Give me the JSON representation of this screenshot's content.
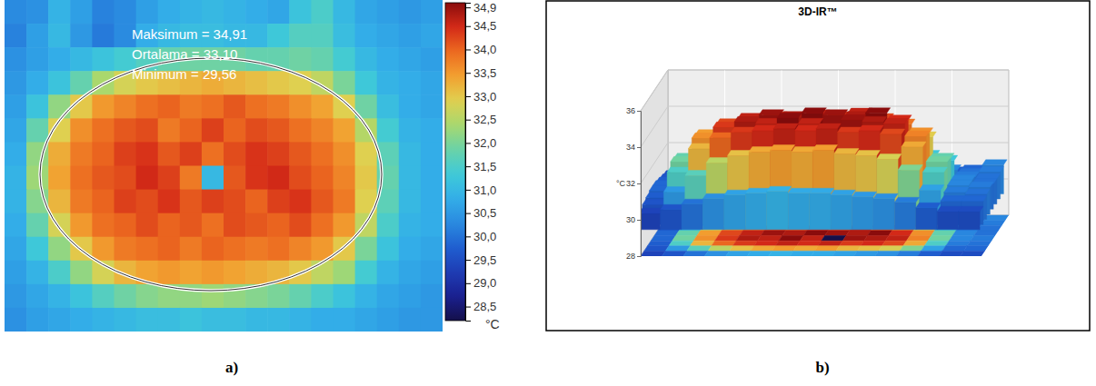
{
  "chart_data": [
    {
      "type": "heatmap",
      "label": "a)",
      "tick_labels": false,
      "annotations": [
        "Maksimum = 34,91",
        "Ortalama = 33,10",
        "Minimum = 29,56"
      ],
      "cells": [
        [
          30.3,
          30.4,
          30.9,
          30.6,
          30.2,
          30.3,
          30.6,
          30.8,
          30.9,
          31.0,
          30.9,
          30.8,
          30.7,
          31.2,
          31.5,
          31.0,
          30.7,
          30.6,
          30.5,
          30.6
        ],
        [
          30.2,
          30.6,
          31.0,
          30.5,
          30.1,
          30.3,
          30.8,
          31.0,
          31.1,
          31.1,
          31.0,
          31.0,
          31.3,
          31.6,
          31.6,
          31.1,
          30.8,
          30.7,
          30.6,
          30.7
        ],
        [
          30.4,
          30.6,
          30.8,
          31.0,
          31.2,
          31.4,
          31.6,
          31.8,
          31.9,
          31.9,
          31.9,
          31.8,
          31.8,
          31.9,
          31.8,
          31.4,
          31.0,
          30.8,
          30.7,
          30.6
        ],
        [
          30.5,
          30.8,
          31.2,
          31.8,
          32.4,
          32.8,
          33.0,
          33.1,
          33.2,
          33.3,
          33.2,
          33.1,
          33.0,
          32.9,
          32.6,
          32.0,
          31.3,
          30.9,
          30.8,
          30.7
        ],
        [
          30.6,
          31.2,
          32.2,
          33.0,
          33.5,
          33.7,
          33.9,
          34.0,
          33.8,
          33.9,
          34.1,
          33.9,
          33.8,
          33.6,
          33.4,
          32.9,
          31.9,
          31.1,
          30.8,
          30.7
        ],
        [
          30.7,
          31.8,
          32.9,
          33.6,
          33.9,
          34.1,
          34.2,
          33.8,
          34.0,
          34.3,
          34.0,
          34.2,
          34.1,
          33.9,
          33.7,
          33.4,
          32.5,
          31.4,
          30.9,
          30.8
        ],
        [
          30.8,
          32.2,
          33.3,
          33.8,
          34.0,
          34.3,
          34.4,
          34.1,
          34.3,
          33.9,
          34.2,
          34.4,
          34.3,
          34.1,
          33.9,
          33.6,
          32.9,
          31.7,
          31.0,
          30.8
        ],
        [
          30.9,
          32.3,
          33.4,
          33.9,
          34.1,
          34.2,
          34.5,
          34.3,
          33.8,
          31.0,
          34.1,
          34.4,
          34.5,
          34.2,
          34.0,
          33.7,
          33.0,
          31.8,
          31.0,
          30.8
        ],
        [
          30.9,
          32.1,
          33.2,
          33.8,
          34.0,
          34.3,
          34.2,
          34.4,
          34.1,
          34.3,
          34.2,
          34.0,
          34.3,
          34.4,
          34.1,
          33.8,
          32.9,
          31.7,
          31.0,
          30.8
        ],
        [
          30.8,
          31.8,
          32.8,
          33.5,
          33.9,
          34.0,
          34.2,
          34.0,
          34.1,
          33.9,
          34.2,
          34.1,
          34.0,
          34.2,
          33.9,
          33.5,
          32.6,
          31.5,
          30.9,
          30.8
        ],
        [
          30.7,
          31.3,
          32.2,
          33.0,
          33.5,
          33.8,
          33.9,
          34.0,
          33.8,
          34.0,
          33.9,
          33.8,
          33.9,
          33.7,
          33.5,
          33.0,
          32.0,
          31.2,
          30.8,
          30.7
        ],
        [
          30.6,
          30.9,
          31.5,
          32.2,
          32.8,
          33.2,
          33.4,
          33.5,
          33.4,
          33.5,
          33.4,
          33.3,
          33.2,
          33.0,
          32.6,
          32.3,
          31.4,
          30.9,
          30.7,
          30.6
        ],
        [
          30.5,
          30.7,
          30.9,
          31.2,
          31.6,
          31.9,
          32.1,
          32.2,
          32.2,
          32.3,
          32.2,
          32.1,
          32.0,
          31.8,
          31.5,
          31.2,
          30.9,
          30.7,
          30.6,
          30.5
        ],
        [
          30.4,
          30.6,
          30.7,
          30.8,
          30.9,
          31.0,
          31.1,
          31.1,
          31.2,
          31.1,
          31.1,
          31.0,
          31.0,
          30.9,
          30.8,
          30.8,
          30.7,
          30.6,
          30.5,
          30.5
        ]
      ],
      "colorbar": {
        "range": [
          28.2,
          35.0
        ],
        "label": "°C",
        "ticks": [
          {
            "value": 34.9,
            "label": "34,9"
          },
          {
            "value": 34.5,
            "label": "34,5"
          },
          {
            "value": 34.0,
            "label": "34,0"
          },
          {
            "value": 33.5,
            "label": "33,5"
          },
          {
            "value": 33.0,
            "label": "33,0"
          },
          {
            "value": 32.5,
            "label": "32,5"
          },
          {
            "value": 32.0,
            "label": "32,0"
          },
          {
            "value": 31.5,
            "label": "31,5"
          },
          {
            "value": 31.0,
            "label": "31,0"
          },
          {
            "value": 30.5,
            "label": "30,5"
          },
          {
            "value": 30.0,
            "label": "30,0"
          },
          {
            "value": 29.5,
            "label": "29,5"
          },
          {
            "value": 29.0,
            "label": "29,0"
          },
          {
            "value": 28.5,
            "label": "28,5"
          }
        ]
      }
    },
    {
      "type": "surface",
      "title": "3D-IR™",
      "label": "b)",
      "ylabel": "°C",
      "tick_labels": "y",
      "ylim": [
        28,
        36
      ],
      "yticks": [
        28,
        30,
        32,
        34,
        36
      ],
      "grid": true,
      "cells": [
        [
          30.6,
          30.8,
          30.9,
          31.0,
          31.1,
          31.2,
          31.1,
          31.2,
          31.3,
          31.2,
          31.1,
          31.0,
          30.9,
          30.8,
          30.9,
          31.2
        ],
        [
          30.7,
          31.0,
          31.8,
          32.6,
          33.0,
          33.2,
          33.3,
          33.2,
          33.3,
          33.2,
          33.1,
          32.8,
          32.0,
          31.2,
          31.0,
          31.1
        ],
        [
          30.8,
          31.9,
          33.2,
          33.9,
          34.2,
          34.4,
          34.3,
          34.5,
          34.4,
          34.6,
          34.3,
          34.0,
          33.3,
          32.0,
          31.1,
          31.0
        ],
        [
          30.9,
          32.4,
          33.7,
          34.3,
          34.6,
          34.8,
          34.7,
          34.9,
          34.8,
          34.7,
          34.9,
          34.5,
          33.8,
          32.4,
          31.2,
          31.0
        ],
        [
          30.9,
          32.5,
          33.8,
          34.4,
          34.7,
          34.6,
          34.9,
          34.6,
          29.6,
          34.8,
          34.7,
          34.6,
          33.9,
          32.5,
          31.2,
          31.1
        ],
        [
          30.8,
          32.2,
          33.5,
          34.1,
          34.4,
          34.5,
          34.6,
          34.5,
          34.6,
          34.4,
          34.5,
          34.3,
          33.6,
          32.2,
          31.1,
          31.0
        ],
        [
          30.7,
          31.4,
          32.3,
          33.0,
          33.4,
          33.6,
          33.7,
          33.6,
          33.7,
          33.5,
          33.4,
          33.2,
          32.6,
          31.5,
          30.9,
          30.9
        ],
        [
          30.5,
          30.7,
          31.0,
          31.3,
          31.5,
          31.6,
          31.7,
          31.6,
          31.6,
          31.5,
          31.4,
          31.3,
          31.1,
          30.8,
          30.6,
          30.6
        ]
      ]
    }
  ]
}
